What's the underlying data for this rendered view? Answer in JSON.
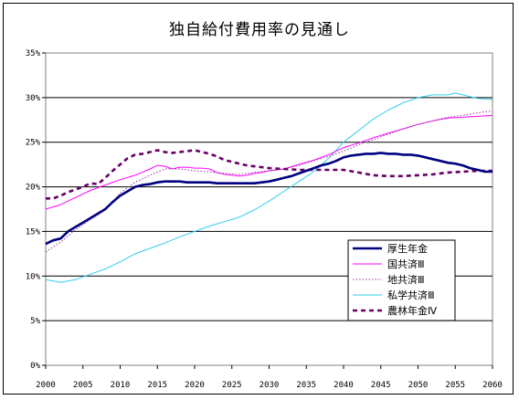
{
  "chart_data": {
    "type": "line",
    "title": "独自給付費用率の見通し",
    "xlabel": "",
    "ylabel": "",
    "xlim": [
      2000,
      2060
    ],
    "ylim": [
      0,
      35
    ],
    "x_ticks": [
      "2000",
      "2005",
      "2010",
      "2015",
      "2020",
      "2025",
      "2030",
      "2035",
      "2040",
      "2045",
      "2050",
      "2055",
      "2060"
    ],
    "y_ticks": [
      "0%",
      "5%",
      "10%",
      "15%",
      "20%",
      "25%",
      "30%",
      "35%"
    ],
    "grid": "horizontal",
    "legend_position": "lower-right",
    "series": [
      {
        "name": "厚生年金",
        "color": "#000080",
        "style": "solid-thick",
        "x": [
          2000,
          2001,
          2002,
          2003,
          2004,
          2005,
          2006,
          2007,
          2008,
          2009,
          2010,
          2011,
          2012,
          2013,
          2014,
          2015,
          2016,
          2017,
          2018,
          2019,
          2020,
          2021,
          2022,
          2023,
          2024,
          2025,
          2026,
          2027,
          2028,
          2029,
          2030,
          2031,
          2032,
          2033,
          2034,
          2035,
          2036,
          2037,
          2038,
          2039,
          2040,
          2041,
          2042,
          2043,
          2044,
          2045,
          2046,
          2047,
          2048,
          2049,
          2050,
          2051,
          2052,
          2053,
          2054,
          2055,
          2056,
          2057,
          2058,
          2059,
          2060
        ],
        "values": [
          13.6,
          14.0,
          14.2,
          15.0,
          15.5,
          16.0,
          16.5,
          17.0,
          17.5,
          18.3,
          19.0,
          19.5,
          20.0,
          20.2,
          20.3,
          20.5,
          20.6,
          20.6,
          20.6,
          20.5,
          20.5,
          20.5,
          20.5,
          20.4,
          20.4,
          20.4,
          20.4,
          20.4,
          20.4,
          20.5,
          20.6,
          20.8,
          21.0,
          21.2,
          21.5,
          21.8,
          22.1,
          22.4,
          22.6,
          22.9,
          23.3,
          23.5,
          23.6,
          23.7,
          23.7,
          23.8,
          23.7,
          23.7,
          23.6,
          23.6,
          23.5,
          23.3,
          23.1,
          22.9,
          22.7,
          22.6,
          22.4,
          22.1,
          21.9,
          21.7,
          21.7
        ]
      },
      {
        "name": "国共済Ⅲ",
        "color": "#ff00ff",
        "style": "solid-thin",
        "x": [
          2000,
          2002,
          2004,
          2006,
          2008,
          2010,
          2012,
          2014,
          2015,
          2016,
          2017,
          2018,
          2019,
          2020,
          2021,
          2022,
          2023,
          2024,
          2025,
          2026,
          2027,
          2028,
          2029,
          2030,
          2032,
          2034,
          2036,
          2038,
          2040,
          2042,
          2044,
          2046,
          2048,
          2050,
          2052,
          2054,
          2056,
          2058,
          2060
        ],
        "values": [
          17.5,
          18.0,
          18.8,
          19.6,
          20.2,
          20.8,
          21.3,
          22.0,
          22.4,
          22.3,
          22.0,
          22.2,
          22.2,
          22.1,
          22.1,
          22.0,
          21.6,
          21.4,
          21.3,
          21.2,
          21.3,
          21.5,
          21.6,
          21.8,
          22.0,
          22.5,
          23.0,
          23.6,
          24.4,
          24.9,
          25.5,
          26.0,
          26.5,
          27.0,
          27.4,
          27.7,
          27.8,
          27.9,
          28.0
        ]
      },
      {
        "name": "地共済Ⅲ",
        "color": "#993399",
        "style": "dotted",
        "x": [
          2000,
          2002,
          2004,
          2006,
          2008,
          2010,
          2012,
          2014,
          2016,
          2018,
          2020,
          2022,
          2024,
          2026,
          2028,
          2030,
          2032,
          2034,
          2036,
          2038,
          2040,
          2042,
          2044,
          2046,
          2048,
          2050,
          2052,
          2054,
          2056,
          2058,
          2060
        ],
        "values": [
          12.7,
          13.8,
          15.2,
          16.3,
          17.4,
          19.3,
          20.5,
          21.3,
          22.0,
          22.0,
          21.8,
          21.7,
          21.5,
          21.4,
          21.6,
          21.8,
          22.0,
          22.4,
          22.9,
          23.4,
          24.0,
          24.7,
          25.3,
          25.9,
          26.5,
          27.0,
          27.4,
          27.8,
          28.0,
          28.3,
          28.5
        ]
      },
      {
        "name": "私学共済Ⅲ",
        "color": "#33ccee",
        "style": "solid-thin",
        "x": [
          2000,
          2002,
          2004,
          2006,
          2008,
          2010,
          2012,
          2014,
          2016,
          2018,
          2020,
          2022,
          2024,
          2026,
          2028,
          2030,
          2032,
          2034,
          2036,
          2038,
          2040,
          2042,
          2044,
          2046,
          2048,
          2050,
          2052,
          2054,
          2055,
          2056,
          2058,
          2060
        ],
        "values": [
          9.6,
          9.3,
          9.6,
          10.2,
          10.8,
          11.6,
          12.5,
          13.1,
          13.7,
          14.4,
          15.0,
          15.6,
          16.1,
          16.6,
          17.4,
          18.4,
          19.5,
          20.6,
          21.7,
          23.2,
          25.0,
          26.3,
          27.6,
          28.6,
          29.4,
          30.0,
          30.3,
          30.3,
          30.5,
          30.3,
          29.9,
          29.8
        ]
      },
      {
        "name": "農林年金Ⅳ",
        "color": "#660066",
        "style": "dashed-thick",
        "x": [
          2000,
          2001,
          2002,
          2003,
          2004,
          2005,
          2006,
          2007,
          2008,
          2009,
          2010,
          2011,
          2012,
          2013,
          2014,
          2015,
          2016,
          2017,
          2018,
          2019,
          2020,
          2021,
          2022,
          2023,
          2024,
          2025,
          2026,
          2027,
          2028,
          2029,
          2030,
          2032,
          2034,
          2036,
          2038,
          2040,
          2042,
          2044,
          2046,
          2048,
          2050,
          2052,
          2054,
          2056,
          2058,
          2060
        ],
        "values": [
          18.7,
          18.7,
          19.0,
          19.4,
          19.7,
          20.0,
          20.4,
          20.3,
          21.0,
          21.8,
          22.5,
          23.2,
          23.6,
          23.7,
          23.9,
          24.1,
          23.9,
          23.8,
          23.9,
          24.0,
          24.1,
          23.9,
          23.7,
          23.4,
          23.0,
          22.8,
          22.6,
          22.4,
          22.3,
          22.2,
          22.1,
          22.0,
          21.9,
          21.9,
          21.9,
          21.9,
          21.6,
          21.3,
          21.2,
          21.2,
          21.3,
          21.4,
          21.6,
          21.7,
          21.8,
          21.8
        ]
      }
    ]
  }
}
